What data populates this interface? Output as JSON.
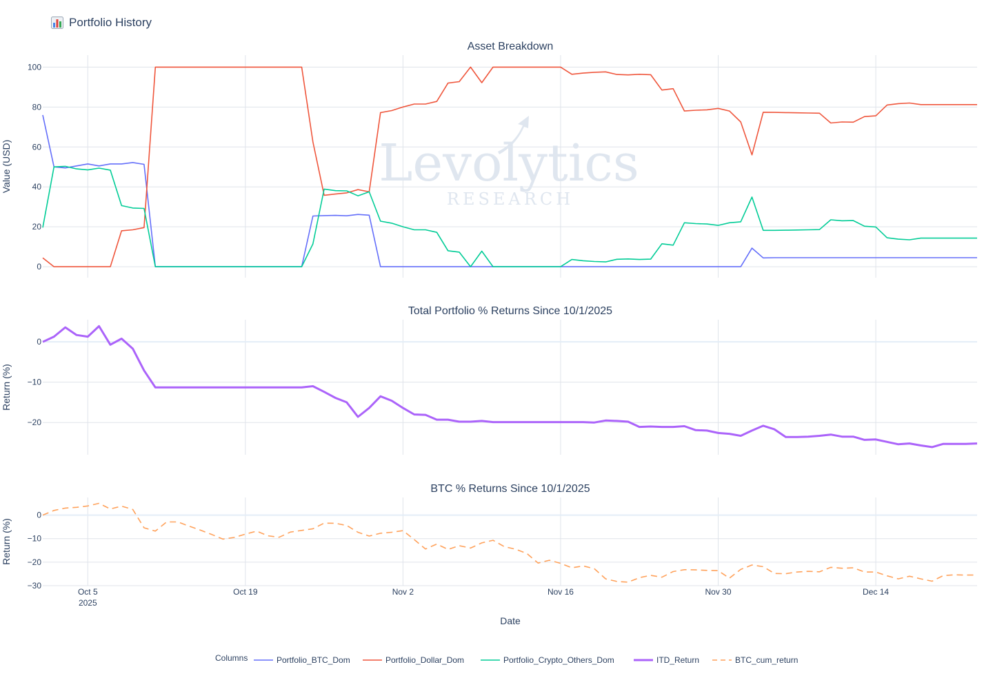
{
  "header": {
    "icon": "bar-chart-icon",
    "title": "Portfolio History"
  },
  "watermark": {
    "main": "Levolytics",
    "sub": "RESEARCH"
  },
  "colors": {
    "Portfolio_BTC_Dom": "#636efa",
    "Portfolio_Dollar_Dom": "#ef553b",
    "Portfolio_Crypto_Others_Dom": "#00cc96",
    "ITD_Return": "#ab63fa",
    "BTC_cum_return": "#ffa15a",
    "grid": "#dfe3ea",
    "zeroline": "#e3edf7",
    "text": "#2a3f5f"
  },
  "chart_data": [
    {
      "type": "line",
      "title": "Asset Breakdown",
      "ylabel": "Value (USD)",
      "ylim": [
        -5.5,
        106
      ],
      "yticks": [
        0,
        20,
        40,
        60,
        80,
        100
      ],
      "x": [
        "2025-10-01",
        "2025-10-02",
        "2025-10-03",
        "2025-10-04",
        "2025-10-05",
        "2025-10-06",
        "2025-10-07",
        "2025-10-08",
        "2025-10-09",
        "2025-10-10",
        "2025-10-11",
        "2025-10-12",
        "2025-10-13",
        "2025-10-14",
        "2025-10-15",
        "2025-10-16",
        "2025-10-17",
        "2025-10-18",
        "2025-10-19",
        "2025-10-20",
        "2025-10-21",
        "2025-10-22",
        "2025-10-23",
        "2025-10-24",
        "2025-10-25",
        "2025-10-26",
        "2025-10-27",
        "2025-10-28",
        "2025-10-29",
        "2025-10-30",
        "2025-10-31",
        "2025-11-01",
        "2025-11-02",
        "2025-11-03",
        "2025-11-04",
        "2025-11-05",
        "2025-11-06",
        "2025-11-07",
        "2025-11-08",
        "2025-11-09",
        "2025-11-10",
        "2025-11-11",
        "2025-11-12",
        "2025-11-13",
        "2025-11-14",
        "2025-11-15",
        "2025-11-16",
        "2025-11-17",
        "2025-11-18",
        "2025-11-19",
        "2025-11-20",
        "2025-11-21",
        "2025-11-22",
        "2025-11-23",
        "2025-11-24",
        "2025-11-25",
        "2025-11-26",
        "2025-11-27",
        "2025-11-28",
        "2025-11-29",
        "2025-11-30",
        "2025-12-01",
        "2025-12-02",
        "2025-12-03",
        "2025-12-04",
        "2025-12-05",
        "2025-12-06",
        "2025-12-07",
        "2025-12-08",
        "2025-12-09",
        "2025-12-10",
        "2025-12-11",
        "2025-12-12",
        "2025-12-13",
        "2025-12-14",
        "2025-12-15",
        "2025-12-16",
        "2025-12-17",
        "2025-12-18",
        "2025-12-19",
        "2025-12-20",
        "2025-12-21",
        "2025-12-22",
        "2025-12-23"
      ],
      "series": [
        {
          "name": "Portfolio_BTC_Dom",
          "values": [
            76,
            50,
            49.5,
            50.5,
            51.5,
            50.5,
            51.5,
            51.5,
            52.2,
            51.3,
            0,
            0,
            0,
            0,
            0,
            0,
            0,
            0,
            0,
            0,
            0,
            0,
            0,
            0,
            25.4,
            25.6,
            25.7,
            25.5,
            26.2,
            25.8,
            0,
            0,
            0,
            0,
            0,
            0,
            0,
            0,
            0,
            0,
            0,
            0,
            0,
            0,
            0,
            0,
            0,
            0,
            0,
            0,
            0,
            0,
            0,
            0,
            0,
            0,
            0,
            0,
            0,
            0,
            0,
            0,
            0,
            9.3,
            4.4,
            4.5,
            4.5,
            4.5,
            4.5,
            4.5,
            4.5,
            4.5,
            4.5,
            4.5,
            4.5,
            4.5,
            4.5,
            4.5,
            4.5,
            4.5,
            4.5,
            4.5,
            4.5,
            4.5
          ]
        },
        {
          "name": "Portfolio_Dollar_Dom",
          "values": [
            4.4,
            0,
            0,
            0,
            0,
            0,
            0,
            18,
            18.5,
            19.6,
            100,
            100,
            100,
            100,
            100,
            100,
            100,
            100,
            100,
            100,
            100,
            100,
            100,
            100,
            62.5,
            35.8,
            36.4,
            37,
            38.6,
            37.5,
            77.2,
            78.2,
            80,
            81.5,
            81.5,
            82.8,
            92,
            92.7,
            100,
            92.2,
            100,
            100,
            100,
            100,
            100,
            100,
            100,
            96.4,
            97,
            97.4,
            97.6,
            96.3,
            96.1,
            96.4,
            96.2,
            88.5,
            89.2,
            78,
            78.4,
            78.6,
            79.3,
            78,
            72.5,
            56,
            77.4,
            77.3,
            77.2,
            77.1,
            77,
            76.9,
            72,
            72.5,
            72.4,
            75.2,
            75.6,
            81,
            81.7,
            82,
            81.2,
            81.2,
            81.2,
            81.2,
            81.2,
            81.2
          ]
        },
        {
          "name": "Portfolio_Crypto_Others_Dom",
          "values": [
            19.6,
            50,
            50.3,
            49,
            48.5,
            49.4,
            48.4,
            30.6,
            29.4,
            29.2,
            0,
            0,
            0,
            0,
            0,
            0,
            0,
            0,
            0,
            0,
            0,
            0,
            0,
            0,
            11.4,
            38.9,
            38.1,
            38,
            35.5,
            37.5,
            22.8,
            21.8,
            20,
            18.5,
            18.5,
            17.2,
            8,
            7.3,
            0,
            7.8,
            0,
            0,
            0,
            0,
            0,
            0,
            0,
            3.6,
            3,
            2.6,
            2.4,
            3.7,
            3.9,
            3.6,
            3.8,
            11.5,
            10.8,
            22,
            21.6,
            21.4,
            20.7,
            22,
            22.5,
            34.9,
            18.2,
            18.2,
            18.3,
            18.4,
            18.5,
            18.6,
            23.5,
            23,
            23.1,
            20.3,
            19.9,
            14.5,
            13.8,
            13.5,
            14.3,
            14.3,
            14.3,
            14.3,
            14.3,
            14.3
          ]
        }
      ]
    },
    {
      "type": "line",
      "title": "Total Portfolio % Returns Since 10/1/2025",
      "ylabel": "Return (%)",
      "ylim": [
        -28,
        5.5
      ],
      "yticks": [
        0,
        -10,
        -20
      ],
      "series": [
        {
          "name": "ITD_Return",
          "values": [
            0,
            1.3,
            3.6,
            1.7,
            1.3,
            3.9,
            -0.7,
            0.8,
            -1.7,
            -7.1,
            -11.3,
            -11.3,
            -11.3,
            -11.3,
            -11.3,
            -11.3,
            -11.3,
            -11.3,
            -11.3,
            -11.3,
            -11.3,
            -11.3,
            -11.3,
            -11.3,
            -11,
            -12.4,
            -13.9,
            -15,
            -18.6,
            -16.4,
            -13.5,
            -14.6,
            -16.4,
            -18,
            -18.1,
            -19.3,
            -19.3,
            -19.8,
            -19.8,
            -19.6,
            -19.9,
            -19.9,
            -19.9,
            -19.9,
            -19.9,
            -19.9,
            -19.9,
            -19.9,
            -19.9,
            -20,
            -19.5,
            -19.6,
            -19.8,
            -21.1,
            -21,
            -21.1,
            -21.1,
            -20.9,
            -21.9,
            -22,
            -22.6,
            -22.8,
            -23.3,
            -22,
            -20.8,
            -21.7,
            -23.6,
            -23.6,
            -23.5,
            -23.3,
            -23,
            -23.5,
            -23.5,
            -24.3,
            -24.2,
            -24.8,
            -25.4,
            -25.2,
            -25.7,
            -26.1,
            -25.3,
            -25.3,
            -25.3,
            -25.2
          ]
        }
      ]
    },
    {
      "type": "line",
      "title": "BTC % Returns Since 10/1/2025",
      "ylabel": "Return (%)",
      "xlabel": "Date",
      "ylim": [
        -30,
        7.5
      ],
      "yticks": [
        0,
        -10,
        -20,
        -30
      ],
      "xticks": [
        {
          "date": "2025-10-05",
          "label": "Oct 5",
          "sub": "2025"
        },
        {
          "date": "2025-10-19",
          "label": "Oct 19"
        },
        {
          "date": "2025-11-02",
          "label": "Nov 2"
        },
        {
          "date": "2025-11-16",
          "label": "Nov 16"
        },
        {
          "date": "2025-11-30",
          "label": "Nov 30"
        },
        {
          "date": "2025-12-14",
          "label": "Dec 14"
        }
      ],
      "series": [
        {
          "name": "BTC_cum_return",
          "values": [
            0,
            2,
            3,
            3.3,
            3.9,
            5,
            2.6,
            3.8,
            2.4,
            -5.4,
            -6.8,
            -2.9,
            -2.9,
            -4.7,
            -6.4,
            -8.2,
            -10.2,
            -9.5,
            -8.1,
            -6.8,
            -8.8,
            -9.4,
            -7.2,
            -6.5,
            -5.8,
            -3.4,
            -3.5,
            -4.4,
            -7.3,
            -8.9,
            -7.7,
            -7.3,
            -6.6,
            -10.4,
            -14.4,
            -12.3,
            -14.6,
            -13,
            -14,
            -11.8,
            -10.7,
            -13.4,
            -14.5,
            -16.3,
            -20.4,
            -19.2,
            -20.5,
            -22.4,
            -21.6,
            -22.8,
            -27.1,
            -28.2,
            -28.5,
            -26.6,
            -25.6,
            -26.4,
            -24,
            -23.2,
            -23.3,
            -23.5,
            -23.6,
            -26.8,
            -23.1,
            -21.2,
            -21.9,
            -24.8,
            -24.9,
            -24.2,
            -23.9,
            -24.1,
            -22.2,
            -22.6,
            -22.4,
            -24.2,
            -24.2,
            -25.8,
            -27.1,
            -26,
            -27.1,
            -28.1,
            -25.7,
            -25.4,
            -25.5,
            -25.5
          ]
        }
      ]
    }
  ],
  "legend": {
    "title": "Columns",
    "items": [
      {
        "name": "Portfolio_BTC_Dom",
        "dash": false,
        "width": 1.5
      },
      {
        "name": "Portfolio_Dollar_Dom",
        "dash": false,
        "width": 1.5
      },
      {
        "name": "Portfolio_Crypto_Others_Dom",
        "dash": false,
        "width": 1.5
      },
      {
        "name": "ITD_Return",
        "dash": false,
        "width": 3
      },
      {
        "name": "BTC_cum_return",
        "dash": true,
        "width": 1.5
      }
    ]
  }
}
